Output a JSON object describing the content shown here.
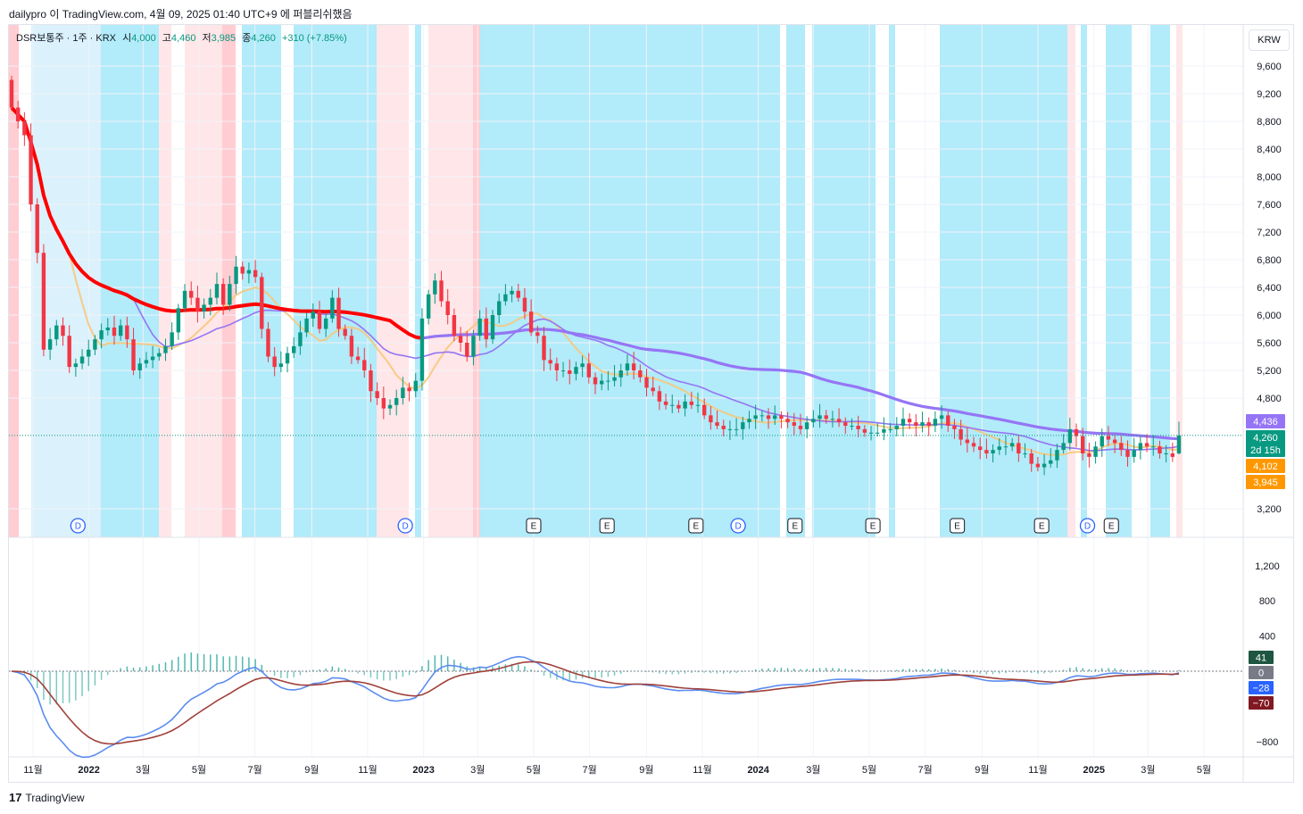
{
  "header": {
    "text": "dailypro 이 TradingView.com, 4월 09, 2025 01:40 UTC+9 에 퍼블리쉬했음"
  },
  "legend": {
    "symbol": "DSR보통주 · 1주 · KRX",
    "open_label": "시",
    "open": "4,000",
    "high_label": "고",
    "high": "4,460",
    "low_label": "저",
    "low": "3,985",
    "close_label": "종",
    "close": "4,260",
    "change": "+310 (+7.85%)"
  },
  "currency": "KRW",
  "footer": {
    "logo_text": "TradingView"
  },
  "colors": {
    "up": "#089981",
    "down": "#f23645",
    "blue_zone": "#b2ebf9",
    "pale_blue_zone": "#dbf1fb",
    "red_zone": "#ffcdd2",
    "pink_zone": "#ffe6e8",
    "ma_red": "#ff0000",
    "ma_purple": "#9575f5",
    "ma_orange": "#f6c87a",
    "macd_blue": "#5b8cf0",
    "signal_brown": "#a0413a"
  },
  "chart_data": [
    {
      "type": "candlestick",
      "timeframe": "1주",
      "yticks": [
        3200,
        4800,
        5200,
        5600,
        6000,
        6400,
        6800,
        7200,
        7600,
        8000,
        8400,
        8800,
        9200,
        9600
      ],
      "ytick_labels": [
        "3,200",
        "4,800",
        "5,200",
        "5,600",
        "6,000",
        "6,400",
        "6,800",
        "7,200",
        "7,600",
        "8,000",
        "8,400",
        "8,800",
        "9,200",
        "9,600"
      ],
      "xtick_labels": [
        {
          "t": "2021-11-01",
          "label": "11월",
          "bold": false
        },
        {
          "t": "2022-01-01",
          "label": "2022",
          "bold": true
        },
        {
          "t": "2022-03-01",
          "label": "3월",
          "bold": false
        },
        {
          "t": "2022-05-01",
          "label": "5월",
          "bold": false
        },
        {
          "t": "2022-07-01",
          "label": "7월",
          "bold": false
        },
        {
          "t": "2022-09-01",
          "label": "9월",
          "bold": false
        },
        {
          "t": "2022-11-01",
          "label": "11월",
          "bold": false
        },
        {
          "t": "2023-01-01",
          "label": "2023",
          "bold": true
        },
        {
          "t": "2023-03-01",
          "label": "3월",
          "bold": false
        },
        {
          "t": "2023-05-01",
          "label": "5월",
          "bold": false
        },
        {
          "t": "2023-07-01",
          "label": "7월",
          "bold": false
        },
        {
          "t": "2023-09-01",
          "label": "9월",
          "bold": false
        },
        {
          "t": "2023-11-01",
          "label": "11월",
          "bold": false
        },
        {
          "t": "2024-01-01",
          "label": "2024",
          "bold": true
        },
        {
          "t": "2024-03-01",
          "label": "3월",
          "bold": false
        },
        {
          "t": "2024-05-01",
          "label": "5월",
          "bold": false
        },
        {
          "t": "2024-07-01",
          "label": "7월",
          "bold": false
        },
        {
          "t": "2024-09-01",
          "label": "9월",
          "bold": false
        },
        {
          "t": "2024-11-01",
          "label": "11월",
          "bold": false
        },
        {
          "t": "2025-01-01",
          "label": "2025",
          "bold": true
        },
        {
          "t": "2025-03-01",
          "label": "3월",
          "bold": false
        },
        {
          "t": "2025-05-01",
          "label": "5월",
          "bold": false
        }
      ],
      "price_tags": [
        {
          "label": "4,436",
          "value": 4436,
          "color": "#9575f5"
        },
        {
          "label": "4,260",
          "value": 4260,
          "color": "#089981",
          "sub": "2d 15h"
        },
        {
          "label": "4,102",
          "value": 4102,
          "color": "#ff9800"
        },
        {
          "label": "3,945",
          "value": 3945,
          "color": "#ff9800"
        }
      ],
      "last_price": 4260,
      "candles_close": [
        9000,
        8800,
        8600,
        7600,
        6900,
        5500,
        5650,
        5850,
        5700,
        5250,
        5300,
        5400,
        5500,
        5650,
        5780,
        5820,
        5700,
        5850,
        5650,
        5200,
        5300,
        5350,
        5400,
        5450,
        5550,
        5750,
        6100,
        6350,
        6250,
        6050,
        6150,
        6250,
        6450,
        6150,
        6450,
        6700,
        6600,
        6650,
        6550,
        5800,
        5400,
        5250,
        5300,
        5450,
        5550,
        5750,
        5950,
        6050,
        5800,
        5950,
        6250,
        5800,
        5700,
        5400,
        5350,
        5200,
        4900,
        4800,
        4650,
        4700,
        4800,
        4950,
        4900,
        5050,
        5950,
        6300,
        6500,
        6200,
        6000,
        5700,
        5600,
        5400,
        5700,
        5950,
        5650,
        6000,
        6200,
        6300,
        6350,
        6250,
        6050,
        5750,
        5700,
        5350,
        5300,
        5200,
        5200,
        5150,
        5250,
        5300,
        5100,
        5000,
        5050,
        5050,
        5100,
        5200,
        5300,
        5200,
        5100,
        4950,
        4900,
        4750,
        4700,
        4700,
        4650,
        4750,
        4700,
        4700,
        4550,
        4450,
        4400,
        4350,
        4350,
        4350,
        4450,
        4500,
        4550,
        4550,
        4500,
        4550,
        4500,
        4450,
        4400,
        4350,
        4450,
        4500,
        4550,
        4500,
        4500,
        4450,
        4400,
        4400,
        4350,
        4300,
        4300,
        4300,
        4350,
        4350,
        4400,
        4500,
        4450,
        4400,
        4450,
        4400,
        4500,
        4550,
        4400,
        4350,
        4200,
        4150,
        4100,
        4050,
        4000,
        4050,
        4100,
        4100,
        4150,
        4000,
        4000,
        3850,
        3800,
        3850,
        3900,
        4050,
        4150,
        4350,
        4250,
        4000,
        3950,
        4100,
        4250,
        4200,
        4150,
        4050,
        3950,
        4050,
        4150,
        4100,
        4100,
        4000,
        4000,
        3950,
        4260
      ],
      "events": [
        {
          "t": "2021-12-20",
          "label": "D"
        },
        {
          "t": "2022-12-12",
          "label": "D"
        },
        {
          "t": "2023-05-01",
          "label": "E"
        },
        {
          "t": "2023-07-20",
          "label": "E"
        },
        {
          "t": "2023-10-25",
          "label": "E"
        },
        {
          "t": "2023-12-10",
          "label": "D"
        },
        {
          "t": "2024-02-10",
          "label": "E"
        },
        {
          "t": "2024-05-05",
          "label": "E"
        },
        {
          "t": "2024-08-05",
          "label": "E"
        },
        {
          "t": "2024-11-05",
          "label": "E"
        },
        {
          "t": "2024-12-25",
          "label": "D"
        },
        {
          "t": "2025-01-20",
          "label": "E"
        }
      ]
    },
    {
      "type": "histogram+line",
      "name": "MACD",
      "yticks": [
        -800,
        400,
        800,
        1200
      ],
      "ytick_labels": [
        "−800",
        "400",
        "800",
        "1,200"
      ],
      "value_tags": [
        {
          "label": "41",
          "value": 41,
          "color": "#1e5641"
        },
        {
          "label": "0",
          "value": 0,
          "color": "#787b86"
        },
        {
          "label": "−28",
          "value": -28,
          "color": "#2962ff"
        },
        {
          "label": "−70",
          "value": -70,
          "color": "#801922"
        }
      ]
    }
  ]
}
